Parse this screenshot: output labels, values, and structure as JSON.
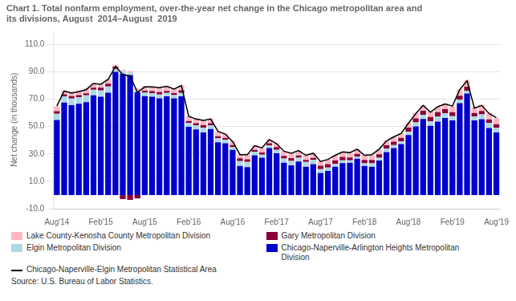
{
  "chart_data": {
    "type": "bar",
    "title": [
      "Chart 1. Total nonfarm employment, over-the-year net change in the Chicago metropolitan area and",
      "its divisions, August  2014–August  2019"
    ],
    "ylabel": "Net change (in thousands)",
    "source": "Source: U.S. Bureau of Labor Statistics.",
    "stacked": true,
    "grid": "y",
    "legend": "bottom",
    "ylim": [
      -10,
      120
    ],
    "yticks": [
      {
        "value": -10,
        "label": "-10.0"
      },
      {
        "value": 10,
        "label": "10.0"
      },
      {
        "value": 30,
        "label": "30.0"
      },
      {
        "value": 50,
        "label": "50.0"
      },
      {
        "value": 70,
        "label": "70.0"
      },
      {
        "value": 90,
        "label": "90.0"
      },
      {
        "value": 110,
        "label": "110.0"
      }
    ],
    "categories": [
      "Aug'14",
      null,
      null,
      null,
      null,
      null,
      "Feb'15",
      null,
      null,
      null,
      null,
      null,
      "Aug'15",
      null,
      null,
      null,
      null,
      null,
      "Feb'16",
      null,
      null,
      null,
      null,
      null,
      "Aug'16",
      null,
      null,
      null,
      null,
      null,
      "Feb'17",
      null,
      null,
      null,
      null,
      null,
      "Aug'17",
      null,
      null,
      null,
      null,
      null,
      "Feb'18",
      null,
      null,
      null,
      null,
      null,
      "Aug'18",
      null,
      null,
      null,
      null,
      null,
      "Feb'19",
      null,
      null,
      null,
      null,
      null,
      "Aug'19"
    ],
    "series": [
      {
        "name": "Chicago-Naperville-Arlington Heights Metropolitan\nDivision",
        "color": "#0000CC",
        "type": "bar",
        "values": [
          54.8,
          67.6,
          65.7,
          66.7,
          67.9,
          72.9,
          71.9,
          74.8,
          90.0,
          88.6,
          87.7,
          75.0,
          72.3,
          71.9,
          70.6,
          72.1,
          70.7,
          72.1,
          49.8,
          48.0,
          45.8,
          48.2,
          38.5,
          37.8,
          33.0,
          21.3,
          20.3,
          29.0,
          27.3,
          34.3,
          30.5,
          23.6,
          21.7,
          24.5,
          20.6,
          22.6,
          16.1,
          17.5,
          20.7,
          23.3,
          23.6,
          26.5,
          21.2,
          20.7,
          25.2,
          31.3,
          34.3,
          37.2,
          43.8,
          50.2,
          55.6,
          50.5,
          53.7,
          56.3,
          54.6,
          67.1,
          74.2,
          54.5,
          55.4,
          49.0,
          45.7
        ]
      },
      {
        "name": "Elgin Metropolitan Division",
        "color": "#ADD8E6",
        "type": "bar",
        "values": [
          4.5,
          4.5,
          4.8,
          4.8,
          5.0,
          4.0,
          4.5,
          4.5,
          2.2,
          2.0,
          1.9,
          2.0,
          2.5,
          2.5,
          2.8,
          2.5,
          2.3,
          2.5,
          2.8,
          3.0,
          3.5,
          2.8,
          3.0,
          2.5,
          2.0,
          3.5,
          3.8,
          2.5,
          2.2,
          2.0,
          2.5,
          3.0,
          3.2,
          2.8,
          3.5,
          3.0,
          2.8,
          2.5,
          2.2,
          2.0,
          1.8,
          1.5,
          2.0,
          2.5,
          2.0,
          2.5,
          2.2,
          2.0,
          2.5,
          2.8,
          3.0,
          3.5,
          3.8,
          3.5,
          3.0,
          2.5,
          2.0,
          3.0,
          3.5,
          3.8,
          3.5
        ]
      },
      {
        "name": "Gary Metropolitan Division",
        "color": "#8B0038",
        "type": "bar",
        "values": [
          2.0,
          1.5,
          1.8,
          1.5,
          1.5,
          1.5,
          2.0,
          2.0,
          1.5,
          -3.0,
          -3.5,
          -2.5,
          1.5,
          1.5,
          1.8,
          1.5,
          1.5,
          2.0,
          1.5,
          1.5,
          1.8,
          1.5,
          1.5,
          1.5,
          1.5,
          2.0,
          2.0,
          1.5,
          1.5,
          1.5,
          2.0,
          2.0,
          2.0,
          1.5,
          1.5,
          1.5,
          2.5,
          2.5,
          2.5,
          2.5,
          2.0,
          2.0,
          2.5,
          2.5,
          2.5,
          2.5,
          2.5,
          2.5,
          3.0,
          3.0,
          3.0,
          3.0,
          3.0,
          3.0,
          3.0,
          3.0,
          3.0,
          2.5,
          2.5,
          2.5,
          2.5
        ]
      },
      {
        "name": "Lake County-Kenosha County Metropolitan Division",
        "color": "#FFB6C1",
        "type": "bar",
        "values": [
          3.5,
          3.0,
          3.5,
          3.5,
          3.5,
          3.0,
          3.0,
          3.5,
          1.5,
          1.0,
          1.0,
          1.0,
          3.5,
          3.5,
          3.5,
          3.5,
          3.5,
          3.5,
          3.5,
          3.5,
          3.5,
          3.5,
          3.5,
          3.0,
          3.0,
          3.0,
          3.5,
          3.5,
          3.5,
          3.0,
          3.0,
          3.5,
          3.5,
          3.5,
          3.5,
          3.5,
          3.5,
          3.5,
          3.5,
          3.5,
          3.5,
          3.5,
          3.5,
          3.5,
          3.5,
          3.5,
          3.5,
          3.5,
          3.5,
          4.0,
          4.0,
          4.0,
          4.0,
          4.0,
          4.0,
          4.5,
          4.5,
          4.5,
          4.5,
          4.5,
          4.5
        ]
      },
      {
        "name": "Chicago-Naperville-Elgin Metropolitan Statistical Area",
        "color": "#000000",
        "type": "line",
        "values": [
          65.0,
          76.0,
          74.5,
          75.5,
          77.0,
          81.5,
          81.0,
          84.5,
          94.0,
          88.0,
          87.0,
          75.0,
          79.0,
          79.0,
          78.5,
          79.5,
          77.5,
          80.0,
          57.5,
          55.5,
          54.5,
          55.5,
          46.5,
          44.5,
          39.0,
          29.5,
          29.5,
          36.0,
          34.5,
          40.5,
          37.5,
          32.0,
          30.5,
          32.5,
          29.0,
          30.5,
          24.5,
          26.0,
          29.0,
          31.5,
          31.0,
          33.5,
          29.0,
          29.5,
          33.5,
          39.5,
          42.5,
          45.0,
          52.5,
          59.5,
          65.5,
          60.5,
          64.5,
          66.5,
          65.0,
          77.0,
          83.5,
          63.5,
          65.5,
          59.5,
          56.5
        ]
      }
    ]
  }
}
